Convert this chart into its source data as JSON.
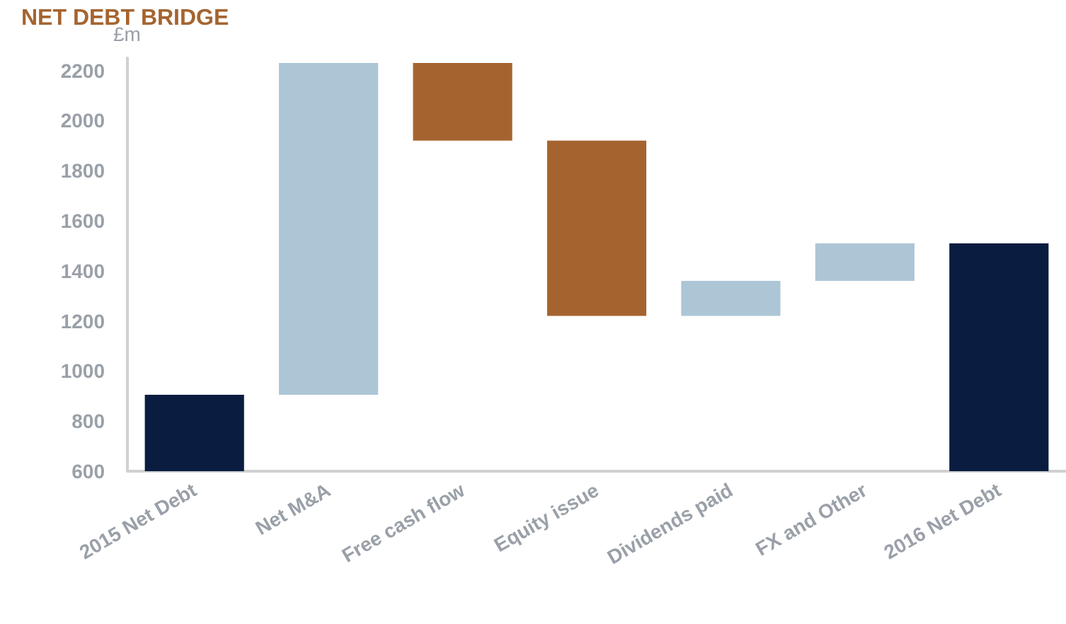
{
  "chart_data": {
    "type": "bar",
    "title": "NET DEBT BRIDGE",
    "ylabel": "£m",
    "categories": [
      "2015 Net Debt",
      "Net M&A",
      "Free cash flow",
      "Equity issue",
      "Dividends paid",
      "FX and Other",
      "2016 Net Debt"
    ],
    "values": [
      905,
      1325,
      -310,
      -700,
      140,
      150,
      1510
    ],
    "base": [
      null,
      905,
      2230,
      1920,
      1220,
      1360,
      null
    ],
    "colors": [
      "#0a1c3f",
      "#adc6d6",
      "#a5642f",
      "#a5642f",
      "#adc6d6",
      "#adc6d6",
      "#0a1c3f"
    ],
    "ylim": [
      600,
      2250
    ],
    "yticks": [
      600,
      800,
      1000,
      1200,
      1400,
      1600,
      1800,
      2000,
      2200
    ],
    "grid": false
  }
}
